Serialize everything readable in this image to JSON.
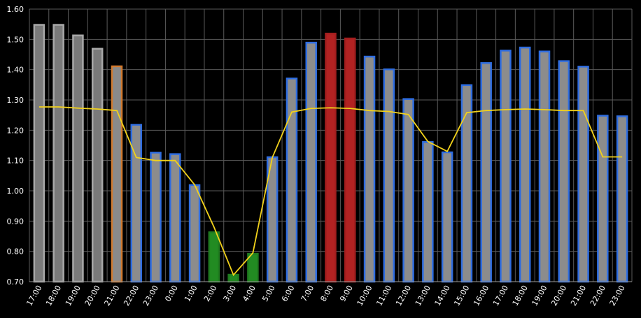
{
  "chart_data": {
    "type": "bar",
    "ylim": [
      0.7,
      1.6
    ],
    "yticks": [
      "0.70",
      "0.80",
      "0.90",
      "1.00",
      "1.10",
      "1.20",
      "1.30",
      "1.40",
      "1.50",
      "1.60"
    ],
    "grid": true,
    "categories": [
      "17:00",
      "18:00",
      "19:00",
      "20:00",
      "21:00",
      "22:00",
      "23:00",
      "0:00",
      "1:00",
      "2:00",
      "3:00",
      "4:00",
      "5:00",
      "6:00",
      "7:00",
      "8:00",
      "9:00",
      "10:00",
      "11:00",
      "12:00",
      "13:00",
      "14:00",
      "15:00",
      "16:00",
      "17:00",
      "18:00",
      "19:00",
      "20:00",
      "21:00",
      "22:00",
      "23:00"
    ],
    "series": [
      {
        "kind": "bar",
        "values": [
          1.548,
          1.548,
          1.513,
          1.469,
          1.411,
          1.218,
          1.126,
          1.121,
          1.019,
          0.863,
          0.723,
          0.792,
          1.111,
          1.371,
          1.489,
          1.519,
          1.503,
          1.443,
          1.401,
          1.303,
          1.161,
          1.127,
          1.349,
          1.422,
          1.463,
          1.473,
          1.46,
          1.428,
          1.41,
          1.248,
          1.246
        ],
        "colors": [
          "past",
          "past",
          "past",
          "past",
          "current",
          "normal",
          "normal",
          "normal",
          "normal",
          "cheap",
          "cheap",
          "cheap",
          "normal",
          "normal",
          "normal",
          "expensive",
          "expensive",
          "normal",
          "normal",
          "normal",
          "normal",
          "normal",
          "normal",
          "normal",
          "normal",
          "normal",
          "normal",
          "normal",
          "normal",
          "normal",
          "normal"
        ]
      },
      {
        "kind": "line",
        "values": [
          1.277,
          1.277,
          1.273,
          1.27,
          1.265,
          1.11,
          1.1,
          1.1,
          1.02,
          0.88,
          0.722,
          0.795,
          1.11,
          1.26,
          1.272,
          1.274,
          1.272,
          1.265,
          1.262,
          1.252,
          1.163,
          1.13,
          1.258,
          1.265,
          1.268,
          1.27,
          1.268,
          1.265,
          1.265,
          1.112,
          1.112
        ]
      }
    ],
    "palette": {
      "past": {
        "fill": "#7a7a7a",
        "stroke": "#a8a8a8"
      },
      "current": {
        "fill": "#8a8a8a",
        "stroke": "#d07a30"
      },
      "normal": {
        "fill": "#8c8c8c",
        "stroke": "#2f6de0"
      },
      "cheap": {
        "fill": "#228b22",
        "stroke": "#1f7a1f"
      },
      "expensive": {
        "fill": "#b22222",
        "stroke": "#a21e1e"
      },
      "line": "#f2d21b",
      "grid": "#5a5a5a",
      "background": "#000000"
    }
  }
}
